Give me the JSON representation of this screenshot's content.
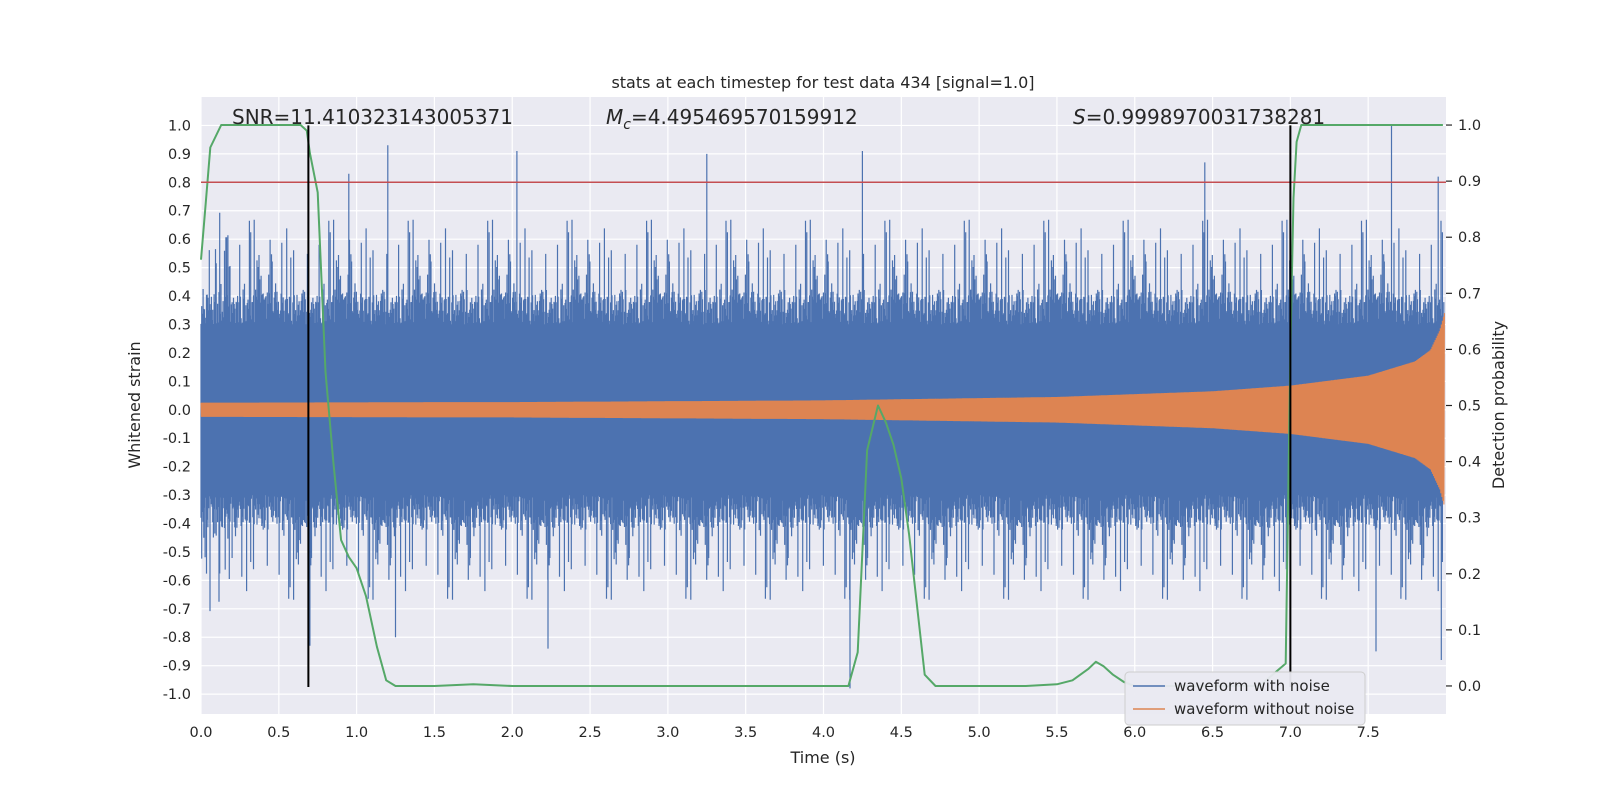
{
  "chart_data": {
    "type": "line",
    "title": "stats at each timestep for test data 434 [signal=1.0]",
    "xlabel": "Time (s)",
    "ylabel_left": "Whitened strain",
    "ylabel_right": "Detection probability",
    "xlim": [
      0.0,
      8.0
    ],
    "ylim_left": [
      -1.07,
      1.1
    ],
    "ylim_right": [
      -0.05,
      1.05
    ],
    "x_ticks": [
      "0.0",
      "0.5",
      "1.0",
      "1.5",
      "2.0",
      "2.5",
      "3.0",
      "3.5",
      "4.0",
      "4.5",
      "5.0",
      "5.5",
      "6.0",
      "6.5",
      "7.0",
      "7.5"
    ],
    "y_ticks_left": [
      "1.0",
      "0.9",
      "0.8",
      "0.7",
      "0.6",
      "0.5",
      "0.4",
      "0.3",
      "0.2",
      "0.1",
      "0.0",
      "-0.1",
      "-0.2",
      "-0.3",
      "-0.4",
      "-0.5",
      "-0.6",
      "-0.7",
      "-0.8",
      "-0.9",
      "-1.0"
    ],
    "y_ticks_right": [
      "1.0",
      "0.9",
      "0.8",
      "0.7",
      "0.6",
      "0.5",
      "0.4",
      "0.3",
      "0.2",
      "0.1",
      "0.0"
    ],
    "grid": true,
    "legend_position": "lower-right",
    "annotations": {
      "snr": "SNR=11.410323143005371",
      "mc_symbol": "M",
      "mc_sub": "c",
      "mc_value": "=4.495469570159912",
      "s_symbol": "S",
      "s_value": "=0.9998970031738281"
    },
    "threshold_line": {
      "y": 0.8,
      "color": "#c44e52"
    },
    "vertical_markers": [
      0.69,
      7.0
    ],
    "series": [
      {
        "name": "waveform with noise",
        "color": "#4c72b0",
        "description_values": {
          "baseline_envelope": 0.3,
          "peak_values": [
            {
              "x": 0.95,
              "y": 0.83
            },
            {
              "x": 1.2,
              "y": 0.93
            },
            {
              "x": 2.03,
              "y": 0.91
            },
            {
              "x": 3.25,
              "y": 0.9
            },
            {
              "x": 4.25,
              "y": 0.91
            },
            {
              "x": 6.45,
              "y": 0.87
            },
            {
              "x": 7.65,
              "y": 1.0
            },
            {
              "x": 7.95,
              "y": 0.82
            },
            {
              "x": 0.7,
              "y": -0.83
            },
            {
              "x": 4.17,
              "y": -0.98
            },
            {
              "x": 1.25,
              "y": -0.8
            },
            {
              "x": 2.23,
              "y": -0.84
            },
            {
              "x": 7.55,
              "y": -0.85
            },
            {
              "x": 7.97,
              "y": -0.88
            }
          ]
        }
      },
      {
        "name": "waveform without noise",
        "color": "#dd8452",
        "amplitude_envelope": [
          {
            "x": 0.0,
            "y": 0.025
          },
          {
            "x": 2.0,
            "y": 0.027
          },
          {
            "x": 4.0,
            "y": 0.033
          },
          {
            "x": 5.5,
            "y": 0.045
          },
          {
            "x": 6.5,
            "y": 0.065
          },
          {
            "x": 7.0,
            "y": 0.085
          },
          {
            "x": 7.5,
            "y": 0.12
          },
          {
            "x": 7.8,
            "y": 0.17
          },
          {
            "x": 7.9,
            "y": 0.21
          },
          {
            "x": 7.96,
            "y": 0.28
          },
          {
            "x": 7.99,
            "y": 0.34
          }
        ]
      },
      {
        "name": "detection probability",
        "color": "#55a868",
        "axis": "right",
        "x": [
          0.0,
          0.03,
          0.06,
          0.13,
          0.2,
          0.3,
          0.5,
          0.64,
          0.68,
          0.7,
          0.75,
          0.8,
          0.85,
          0.9,
          0.95,
          1.0,
          1.06,
          1.13,
          1.19,
          1.25,
          1.5,
          1.75,
          2.0,
          2.5,
          3.0,
          3.5,
          4.0,
          4.16,
          4.22,
          4.28,
          4.35,
          4.4,
          4.45,
          4.5,
          4.55,
          4.65,
          4.72,
          4.8,
          5.0,
          5.3,
          5.5,
          5.6,
          5.7,
          5.75,
          5.8,
          5.86,
          5.93,
          6.0,
          6.5,
          6.8,
          6.97,
          7.0,
          7.02,
          7.04,
          7.07,
          7.5,
          7.98
        ],
        "y": [
          0.76,
          0.86,
          0.96,
          1.0,
          1.0,
          1.0,
          1.0,
          1.0,
          0.99,
          0.95,
          0.88,
          0.56,
          0.4,
          0.26,
          0.23,
          0.21,
          0.16,
          0.07,
          0.01,
          0.0,
          0.0,
          0.003,
          0.0,
          0.0,
          0.0,
          0.0,
          0.0,
          0.0,
          0.06,
          0.42,
          0.5,
          0.47,
          0.43,
          0.37,
          0.27,
          0.02,
          0.0,
          0.0,
          0.0,
          0.0,
          0.003,
          0.01,
          0.03,
          0.043,
          0.035,
          0.02,
          0.007,
          0.0,
          0.0,
          0.0,
          0.04,
          0.6,
          0.87,
          0.97,
          1.0,
          1.0,
          1.0
        ]
      }
    ]
  }
}
